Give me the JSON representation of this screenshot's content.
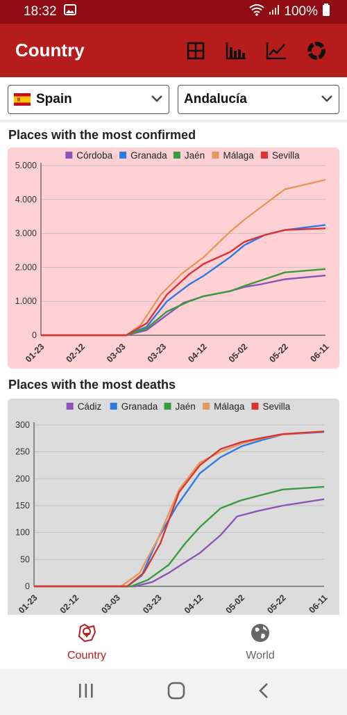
{
  "status_bar": {
    "time": "18:32",
    "battery": "100%"
  },
  "app_bar": {
    "title": "Country"
  },
  "selectors": {
    "country": "Spain",
    "region": "Andalucía"
  },
  "sections": {
    "confirmed_title": "Places with the most confirmed",
    "deaths_title": "Places with the most deaths"
  },
  "nav": {
    "country_label": "Country",
    "world_label": "World"
  },
  "colors": {
    "primary": "#b71c1c",
    "status": "#8e0c12",
    "purple": "#8a55b5",
    "blue": "#2c7be5",
    "green": "#3a9a3f",
    "orange": "#e8975a",
    "red": "#d93434"
  },
  "chart_data": [
    {
      "type": "line",
      "title": "Places with the most confirmed",
      "x_ticks": [
        "01-23",
        "02-12",
        "03-03",
        "03-23",
        "04-12",
        "05-02",
        "05-22",
        "06-11"
      ],
      "y_ticks": [
        "0",
        "1.000",
        "2.000",
        "3.000",
        "4.000",
        "5.000"
      ],
      "ylim": [
        0,
        5000
      ],
      "legend_position": "top",
      "background": "#ffd0d4",
      "series": [
        {
          "name": "Córdoba",
          "color": "#8a55b5",
          "points": [
            [
              "01-23",
              0
            ],
            [
              "03-05",
              0
            ],
            [
              "03-15",
              150
            ],
            [
              "03-25",
              600
            ],
            [
              "04-02",
              950
            ],
            [
              "04-12",
              1150
            ],
            [
              "04-25",
              1300
            ],
            [
              "05-02",
              1420
            ],
            [
              "05-10",
              1500
            ],
            [
              "05-22",
              1650
            ],
            [
              "06-11",
              1760
            ]
          ]
        },
        {
          "name": "Granada",
          "color": "#2c7be5",
          "points": [
            [
              "01-23",
              0
            ],
            [
              "03-05",
              0
            ],
            [
              "03-15",
              250
            ],
            [
              "03-25",
              1000
            ],
            [
              "04-05",
              1500
            ],
            [
              "04-12",
              1750
            ],
            [
              "04-25",
              2300
            ],
            [
              "05-02",
              2650
            ],
            [
              "05-12",
              2950
            ],
            [
              "05-22",
              3100
            ],
            [
              "06-11",
              3250
            ]
          ]
        },
        {
          "name": "Jaén",
          "color": "#3a9a3f",
          "points": [
            [
              "01-23",
              0
            ],
            [
              "03-05",
              0
            ],
            [
              "03-15",
              200
            ],
            [
              "03-25",
              700
            ],
            [
              "04-05",
              1000
            ],
            [
              "04-12",
              1150
            ],
            [
              "04-25",
              1300
            ],
            [
              "05-02",
              1450
            ],
            [
              "05-12",
              1650
            ],
            [
              "05-22",
              1850
            ],
            [
              "06-11",
              1950
            ]
          ]
        },
        {
          "name": "Málaga",
          "color": "#e8975a",
          "points": [
            [
              "01-23",
              0
            ],
            [
              "03-05",
              0
            ],
            [
              "03-12",
              300
            ],
            [
              "03-22",
              1200
            ],
            [
              "04-01",
              1800
            ],
            [
              "04-12",
              2300
            ],
            [
              "04-25",
              3050
            ],
            [
              "05-02",
              3400
            ],
            [
              "05-12",
              3850
            ],
            [
              "05-22",
              4300
            ],
            [
              "06-11",
              4580
            ]
          ]
        },
        {
          "name": "Sevilla",
          "color": "#d93434",
          "points": [
            [
              "01-23",
              0
            ],
            [
              "03-05",
              0
            ],
            [
              "03-15",
              350
            ],
            [
              "03-25",
              1200
            ],
            [
              "04-05",
              1800
            ],
            [
              "04-12",
              2100
            ],
            [
              "04-25",
              2450
            ],
            [
              "05-02",
              2750
            ],
            [
              "05-12",
              2950
            ],
            [
              "05-22",
              3100
            ],
            [
              "06-11",
              3150
            ]
          ]
        }
      ]
    },
    {
      "type": "line",
      "title": "Places with the most deaths",
      "x_ticks": [
        "01-23",
        "02-12",
        "03-03",
        "03-23",
        "04-12",
        "05-02",
        "05-22",
        "06-11"
      ],
      "y_ticks": [
        "0",
        "50",
        "100",
        "150",
        "200",
        "250",
        "300"
      ],
      "ylim": [
        0,
        300
      ],
      "legend_position": "top",
      "background": "#dcdcdc",
      "series": [
        {
          "name": "Cádiz",
          "color": "#8a55b5",
          "points": [
            [
              "01-23",
              0
            ],
            [
              "03-12",
              0
            ],
            [
              "03-20",
              8
            ],
            [
              "03-28",
              25
            ],
            [
              "04-05",
              45
            ],
            [
              "04-12",
              62
            ],
            [
              "04-22",
              95
            ],
            [
              "04-30",
              130
            ],
            [
              "05-10",
              140
            ],
            [
              "05-22",
              150
            ],
            [
              "06-11",
              162
            ]
          ]
        },
        {
          "name": "Granada",
          "color": "#2c7be5",
          "points": [
            [
              "01-23",
              0
            ],
            [
              "03-08",
              0
            ],
            [
              "03-15",
              20
            ],
            [
              "03-23",
              90
            ],
            [
              "04-01",
              150
            ],
            [
              "04-12",
              210
            ],
            [
              "04-22",
              240
            ],
            [
              "05-02",
              260
            ],
            [
              "05-12",
              272
            ],
            [
              "05-22",
              282
            ],
            [
              "06-11",
              287
            ]
          ]
        },
        {
          "name": "Jaén",
          "color": "#3a9a3f",
          "points": [
            [
              "01-23",
              0
            ],
            [
              "03-10",
              0
            ],
            [
              "03-18",
              12
            ],
            [
              "03-28",
              40
            ],
            [
              "04-05",
              80
            ],
            [
              "04-12",
              110
            ],
            [
              "04-22",
              145
            ],
            [
              "05-02",
              160
            ],
            [
              "05-12",
              170
            ],
            [
              "05-22",
              180
            ],
            [
              "06-11",
              185
            ]
          ]
        },
        {
          "name": "Málaga",
          "color": "#e8975a",
          "points": [
            [
              "01-23",
              0
            ],
            [
              "03-05",
              0
            ],
            [
              "03-14",
              25
            ],
            [
              "03-23",
              90
            ],
            [
              "04-02",
              180
            ],
            [
              "04-12",
              230
            ],
            [
              "04-22",
              250
            ],
            [
              "05-02",
              265
            ],
            [
              "05-12",
              275
            ],
            [
              "05-22",
              282
            ],
            [
              "06-11",
              288
            ]
          ]
        },
        {
          "name": "Sevilla",
          "color": "#d93434",
          "points": [
            [
              "01-23",
              0
            ],
            [
              "03-08",
              0
            ],
            [
              "03-16",
              25
            ],
            [
              "03-24",
              80
            ],
            [
              "04-02",
              175
            ],
            [
              "04-12",
              225
            ],
            [
              "04-22",
              255
            ],
            [
              "05-02",
              268
            ],
            [
              "05-12",
              276
            ],
            [
              "05-22",
              283
            ],
            [
              "06-11",
              288
            ]
          ]
        }
      ]
    }
  ]
}
